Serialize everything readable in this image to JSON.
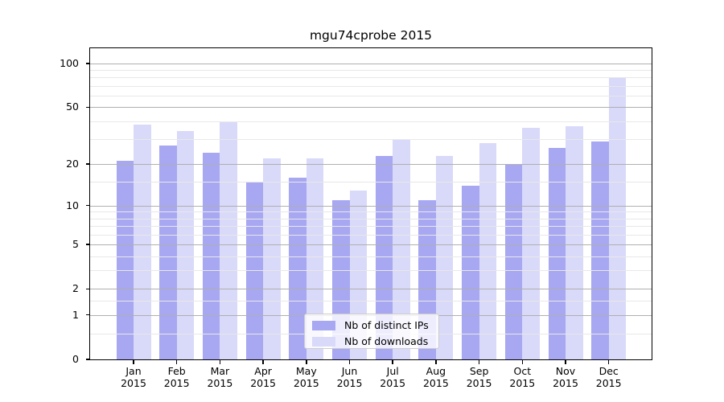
{
  "chart_data": {
    "type": "bar",
    "title": "mgu74cprobe 2015",
    "categories": [
      "Jan 2015",
      "Feb 2015",
      "Mar 2015",
      "Apr 2015",
      "May 2015",
      "Jun 2015",
      "Jul 2015",
      "Aug 2015",
      "Sep 2015",
      "Oct 2015",
      "Nov 2015",
      "Dec 2015"
    ],
    "series": [
      {
        "name": "Nb of distinct IPs",
        "color": "#a7a7f2",
        "values": [
          21,
          27,
          24,
          15,
          16,
          11,
          23,
          11,
          14,
          20,
          26,
          29
        ]
      },
      {
        "name": "Nb of downloads",
        "color": "#d9d9f9",
        "values": [
          38,
          34,
          40,
          22,
          22,
          13,
          30,
          23,
          28,
          36,
          37,
          80
        ]
      }
    ],
    "xlabel": "",
    "ylabel": "",
    "y_scale": "log1p",
    "ylim": [
      0,
      127
    ],
    "y_major_ticks": [
      0,
      1,
      2,
      5,
      10,
      20,
      50,
      100
    ],
    "y_minor_ticks": [
      0.5,
      1.5,
      3,
      4,
      6,
      7,
      8,
      9,
      15,
      30,
      40,
      60,
      70,
      80,
      90
    ],
    "grid": true,
    "grid_above_bars": true,
    "legend_position": "lower center"
  },
  "colors": {
    "background": "#ffffff",
    "text": "#000000",
    "axis": "#000000",
    "major_grid": "#b0b0b0",
    "minor_grid": "#e8e8e8",
    "legend_border": "#cccccc"
  }
}
